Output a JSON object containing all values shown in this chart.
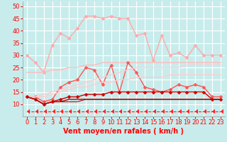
{
  "x": [
    0,
    1,
    2,
    3,
    4,
    5,
    6,
    7,
    8,
    9,
    10,
    11,
    12,
    13,
    14,
    15,
    16,
    17,
    18,
    19,
    20,
    21,
    22,
    23
  ],
  "series": [
    {
      "name": "rafales_max",
      "color": "#ffaaaa",
      "lw": 1.0,
      "marker": "D",
      "markersize": 2.5,
      "values": [
        30,
        27,
        23,
        34,
        39,
        37,
        41,
        46,
        46,
        45,
        46,
        45,
        45,
        38,
        39,
        28,
        38,
        30,
        31,
        29,
        34,
        30,
        30,
        30
      ]
    },
    {
      "name": "rafales_trend",
      "color": "#ffbbbb",
      "lw": 1.0,
      "marker": null,
      "markersize": 0,
      "values": [
        23,
        23,
        23,
        24,
        24,
        25,
        25,
        26,
        26,
        27,
        27,
        27,
        27,
        27,
        27,
        27,
        27,
        27,
        27,
        27,
        27,
        27,
        27,
        27
      ]
    },
    {
      "name": "vent_max",
      "color": "#ff5555",
      "lw": 1.0,
      "marker": "D",
      "markersize": 2.5,
      "values": [
        13,
        13,
        11,
        12,
        17,
        19,
        20,
        25,
        24,
        18,
        26,
        15,
        27,
        23,
        17,
        16,
        15,
        16,
        18,
        17,
        18,
        17,
        13,
        13
      ]
    },
    {
      "name": "vent_trend_high",
      "color": "#ffcccc",
      "lw": 1.0,
      "marker": null,
      "markersize": 0,
      "values": [
        13,
        13,
        14,
        15,
        16,
        17,
        18,
        19,
        20,
        21,
        22,
        23,
        24,
        25,
        25,
        25,
        25,
        25,
        25,
        26,
        26,
        26,
        26,
        26
      ]
    },
    {
      "name": "vent_trend_mid",
      "color": "#ffcccc",
      "lw": 1.0,
      "marker": null,
      "markersize": 0,
      "values": [
        13,
        13,
        13,
        14,
        15,
        16,
        17,
        17,
        18,
        19,
        19,
        20,
        20,
        21,
        21,
        21,
        21,
        22,
        22,
        22,
        22,
        22,
        22,
        22
      ]
    },
    {
      "name": "vent_mean",
      "color": "#cc0000",
      "lw": 1.0,
      "marker": "D",
      "markersize": 2.5,
      "values": [
        13,
        12,
        10,
        11,
        12,
        13,
        13,
        14,
        14,
        14,
        15,
        15,
        15,
        15,
        15,
        15,
        15,
        15,
        15,
        15,
        15,
        15,
        12,
        12
      ]
    },
    {
      "name": "vent_min",
      "color": "#aa0000",
      "lw": 1.0,
      "marker": null,
      "markersize": 0,
      "values": [
        13,
        12,
        10,
        11,
        11,
        12,
        12,
        12,
        12,
        12,
        12,
        12,
        12,
        12,
        12,
        12,
        12,
        12,
        12,
        12,
        12,
        12,
        12,
        12
      ]
    },
    {
      "name": "vent_base",
      "color": "#cc0000",
      "lw": 0.8,
      "marker": null,
      "markersize": 0,
      "values": [
        13,
        12,
        10,
        11,
        11,
        11,
        11,
        12,
        12,
        12,
        12,
        12,
        12,
        12,
        12,
        12,
        12,
        12,
        12,
        12,
        12,
        12,
        12,
        12
      ]
    },
    {
      "name": "dashed_arrows",
      "color": "#ff2222",
      "lw": 0.8,
      "marker": 4,
      "markersize": 4,
      "linestyle": "--",
      "values": [
        7,
        7,
        7,
        7,
        7,
        7,
        7,
        7,
        7,
        7,
        7,
        7,
        7,
        7,
        7,
        7,
        7,
        7,
        7,
        7,
        7,
        7,
        7,
        7
      ]
    }
  ],
  "xlabel": "Vent moyen/en rafales ( km/h )",
  "xlim": [
    -0.5,
    23.5
  ],
  "ylim": [
    5,
    52
  ],
  "yticks": [
    10,
    15,
    20,
    25,
    30,
    35,
    40,
    45,
    50
  ],
  "xticks": [
    0,
    1,
    2,
    3,
    4,
    5,
    6,
    7,
    8,
    9,
    10,
    11,
    12,
    13,
    14,
    15,
    16,
    17,
    18,
    19,
    20,
    21,
    22,
    23
  ],
  "bg_color": "#c8ecec",
  "grid_color": "#ffffff",
  "tick_color": "#ff0000",
  "label_color": "#ff0000",
  "xlabel_fontsize": 7,
  "tick_fontsize": 6
}
